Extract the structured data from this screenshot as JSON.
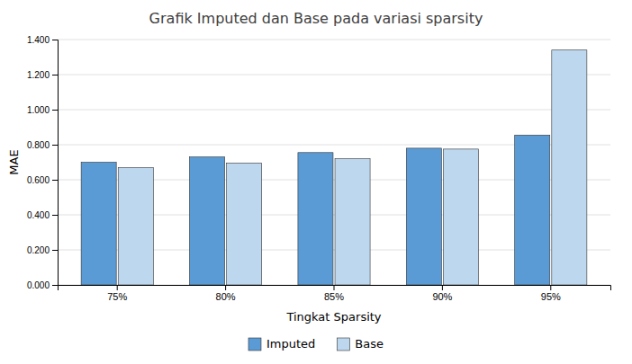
{
  "chart_data": {
    "type": "bar",
    "title": "Grafik Imputed dan Base pada variasi sparsity",
    "xlabel": "Tingkat Sparsity",
    "ylabel": "MAE",
    "categories": [
      "75%",
      "80%",
      "85%",
      "90%",
      "95%"
    ],
    "series": [
      {
        "name": "Imputed",
        "color": "#5B9BD5",
        "values": [
          0.7,
          0.73,
          0.755,
          0.78,
          0.855
        ]
      },
      {
        "name": "Base",
        "color": "#BDD7EE",
        "values": [
          0.67,
          0.695,
          0.72,
          0.775,
          1.34
        ]
      }
    ],
    "ylim": [
      0,
      1.4
    ],
    "yticks": [
      {
        "value": 0.0,
        "label": "0.000"
      },
      {
        "value": 0.2,
        "label": "0.200"
      },
      {
        "value": 0.4,
        "label": "0.400"
      },
      {
        "value": 0.6,
        "label": "0.600"
      },
      {
        "value": 0.8,
        "label": "0.800"
      },
      {
        "value": 1.0,
        "label": "1.000"
      },
      {
        "value": 1.2,
        "label": "1.200"
      },
      {
        "value": 1.4,
        "label": "1.400"
      }
    ],
    "grid": true,
    "legend": "bottom"
  }
}
